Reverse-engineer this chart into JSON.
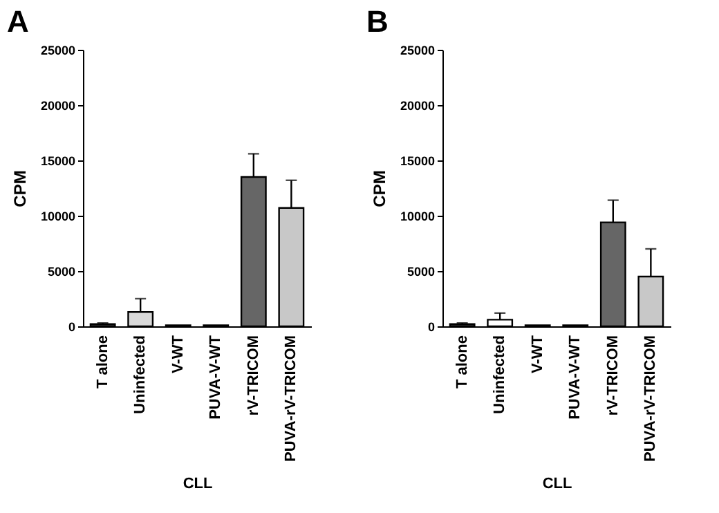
{
  "chart_data": [
    {
      "type": "bar",
      "title": "A",
      "ylabel": "CPM",
      "xlabel": "CLL",
      "categories": [
        "T alone",
        "Uninfected",
        "V-WT",
        "PUVA-V-WT",
        "rV-TRICOM",
        "PUVA-rV-TRICOM"
      ],
      "values": [
        200,
        1300,
        100,
        100,
        13500,
        10700
      ],
      "errors": [
        100,
        1200,
        null,
        null,
        2100,
        2500
      ],
      "colors": [
        "#333333",
        "#d9d9d9",
        "#333333",
        "#333333",
        "#666666",
        "#c8c8c8"
      ],
      "ylim": [
        0,
        25000
      ],
      "yticks": [
        0,
        5000,
        10000,
        15000,
        20000,
        25000
      ],
      "grid": false
    },
    {
      "type": "bar",
      "title": "B",
      "ylabel": "CPM",
      "xlabel": "CLL",
      "categories": [
        "T alone",
        "Uninfected",
        "V-WT",
        "PUVA-V-WT",
        "rV-TRICOM",
        "PUVA-rV-TRICOM"
      ],
      "values": [
        200,
        600,
        100,
        100,
        9400,
        4500
      ],
      "errors": [
        100,
        600,
        null,
        null,
        2000,
        2500
      ],
      "colors": [
        "#333333",
        "#ffffff",
        "#333333",
        "#333333",
        "#666666",
        "#c8c8c8"
      ],
      "ylim": [
        0,
        25000
      ],
      "yticks": [
        0,
        5000,
        10000,
        15000,
        20000,
        25000
      ],
      "grid": false
    }
  ]
}
